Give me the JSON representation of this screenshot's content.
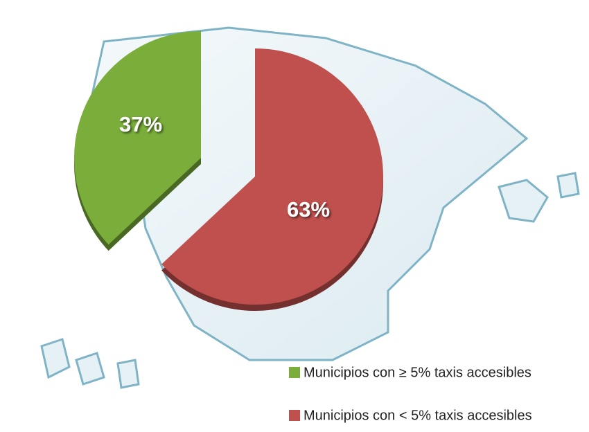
{
  "chart_data": {
    "type": "pie",
    "categories": [
      "Municipios con ≥ 5% taxis accesibles",
      "Municipios con < 5% taxis accesibles"
    ],
    "values": [
      37,
      63
    ],
    "value_labels": [
      "37%",
      "63%"
    ],
    "colors": [
      "#7aad3a",
      "#c0504d"
    ]
  }
}
